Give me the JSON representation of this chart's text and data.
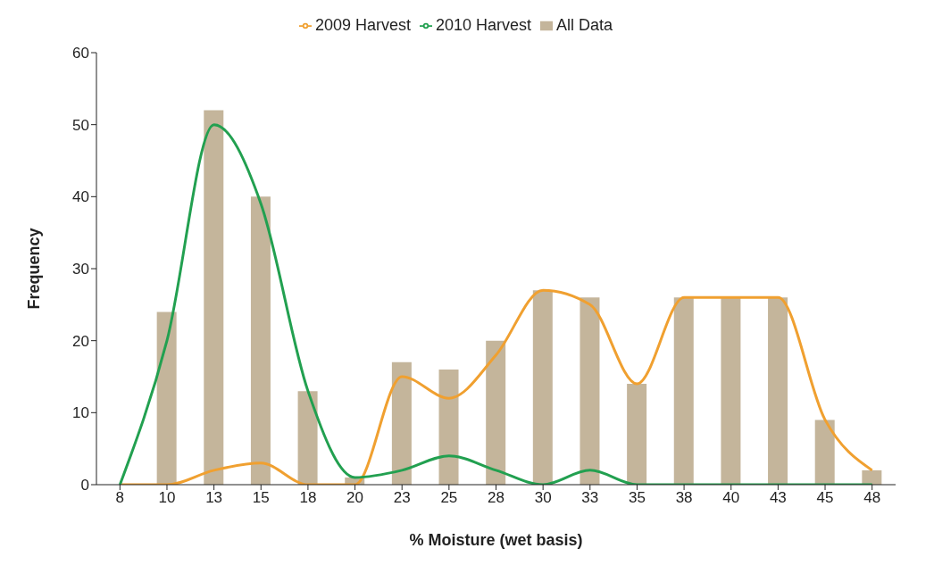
{
  "chart_data": {
    "type": "bar",
    "xlabel": "% Moisture (wet basis)",
    "ylabel": "Frequency",
    "categories": [
      "8",
      "10",
      "13",
      "15",
      "18",
      "20",
      "23",
      "25",
      "28",
      "30",
      "33",
      "35",
      "38",
      "40",
      "43",
      "45",
      "48"
    ],
    "series": [
      {
        "name": "All Data",
        "color": "#c4b59b",
        "values": [
          0,
          24,
          52,
          40,
          13,
          1,
          17,
          16,
          20,
          27,
          26,
          14,
          26,
          26,
          26,
          9,
          2
        ]
      },
      {
        "name": "2009 Harvest",
        "type": "line",
        "color": "#f0a030",
        "values": [
          0,
          0,
          2,
          3,
          0,
          0,
          15,
          12,
          18,
          27,
          25,
          14,
          26,
          26,
          26,
          9,
          2
        ]
      },
      {
        "name": "2010 Harvest",
        "type": "line",
        "color": "#22a050",
        "values": [
          0,
          20,
          50,
          39,
          13,
          1,
          2,
          4,
          2,
          0,
          2,
          0,
          0,
          0,
          0,
          0,
          0
        ]
      }
    ],
    "ylim": [
      0,
      60
    ],
    "yticks": [
      0,
      10,
      20,
      30,
      40,
      50,
      60
    ],
    "grid": false,
    "legend": "top",
    "marker": "none",
    "line_style": "solid"
  }
}
